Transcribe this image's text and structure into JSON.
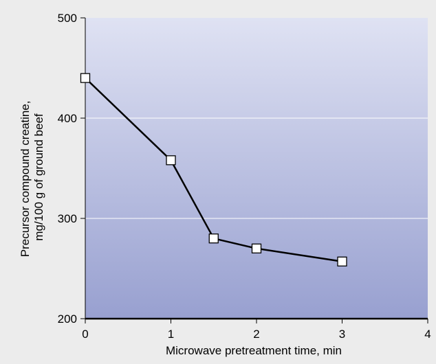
{
  "chart_data": {
    "type": "line",
    "title": "",
    "xlabel": "Microwave pretreatment time, min",
    "ylabel_lines": [
      "Precursor compound creatine,",
      "mg/100 g of ground beef"
    ],
    "xlim": [
      0,
      4
    ],
    "ylim": [
      200,
      500
    ],
    "x_ticks": [
      0,
      1,
      2,
      3,
      4
    ],
    "y_ticks": [
      200,
      300,
      400,
      500
    ],
    "grid": "horizontal",
    "series": [
      {
        "x": [
          0,
          1,
          1.5,
          2,
          3
        ],
        "y": [
          440,
          358,
          280,
          270,
          257
        ]
      }
    ],
    "colors": {
      "plot_top": "#dfe2f3",
      "plot_bottom": "#98a0d0",
      "line": "#000000",
      "marker_fill": "#ffffff",
      "gridline": "#ffffff",
      "page_background": "#ececec"
    }
  }
}
